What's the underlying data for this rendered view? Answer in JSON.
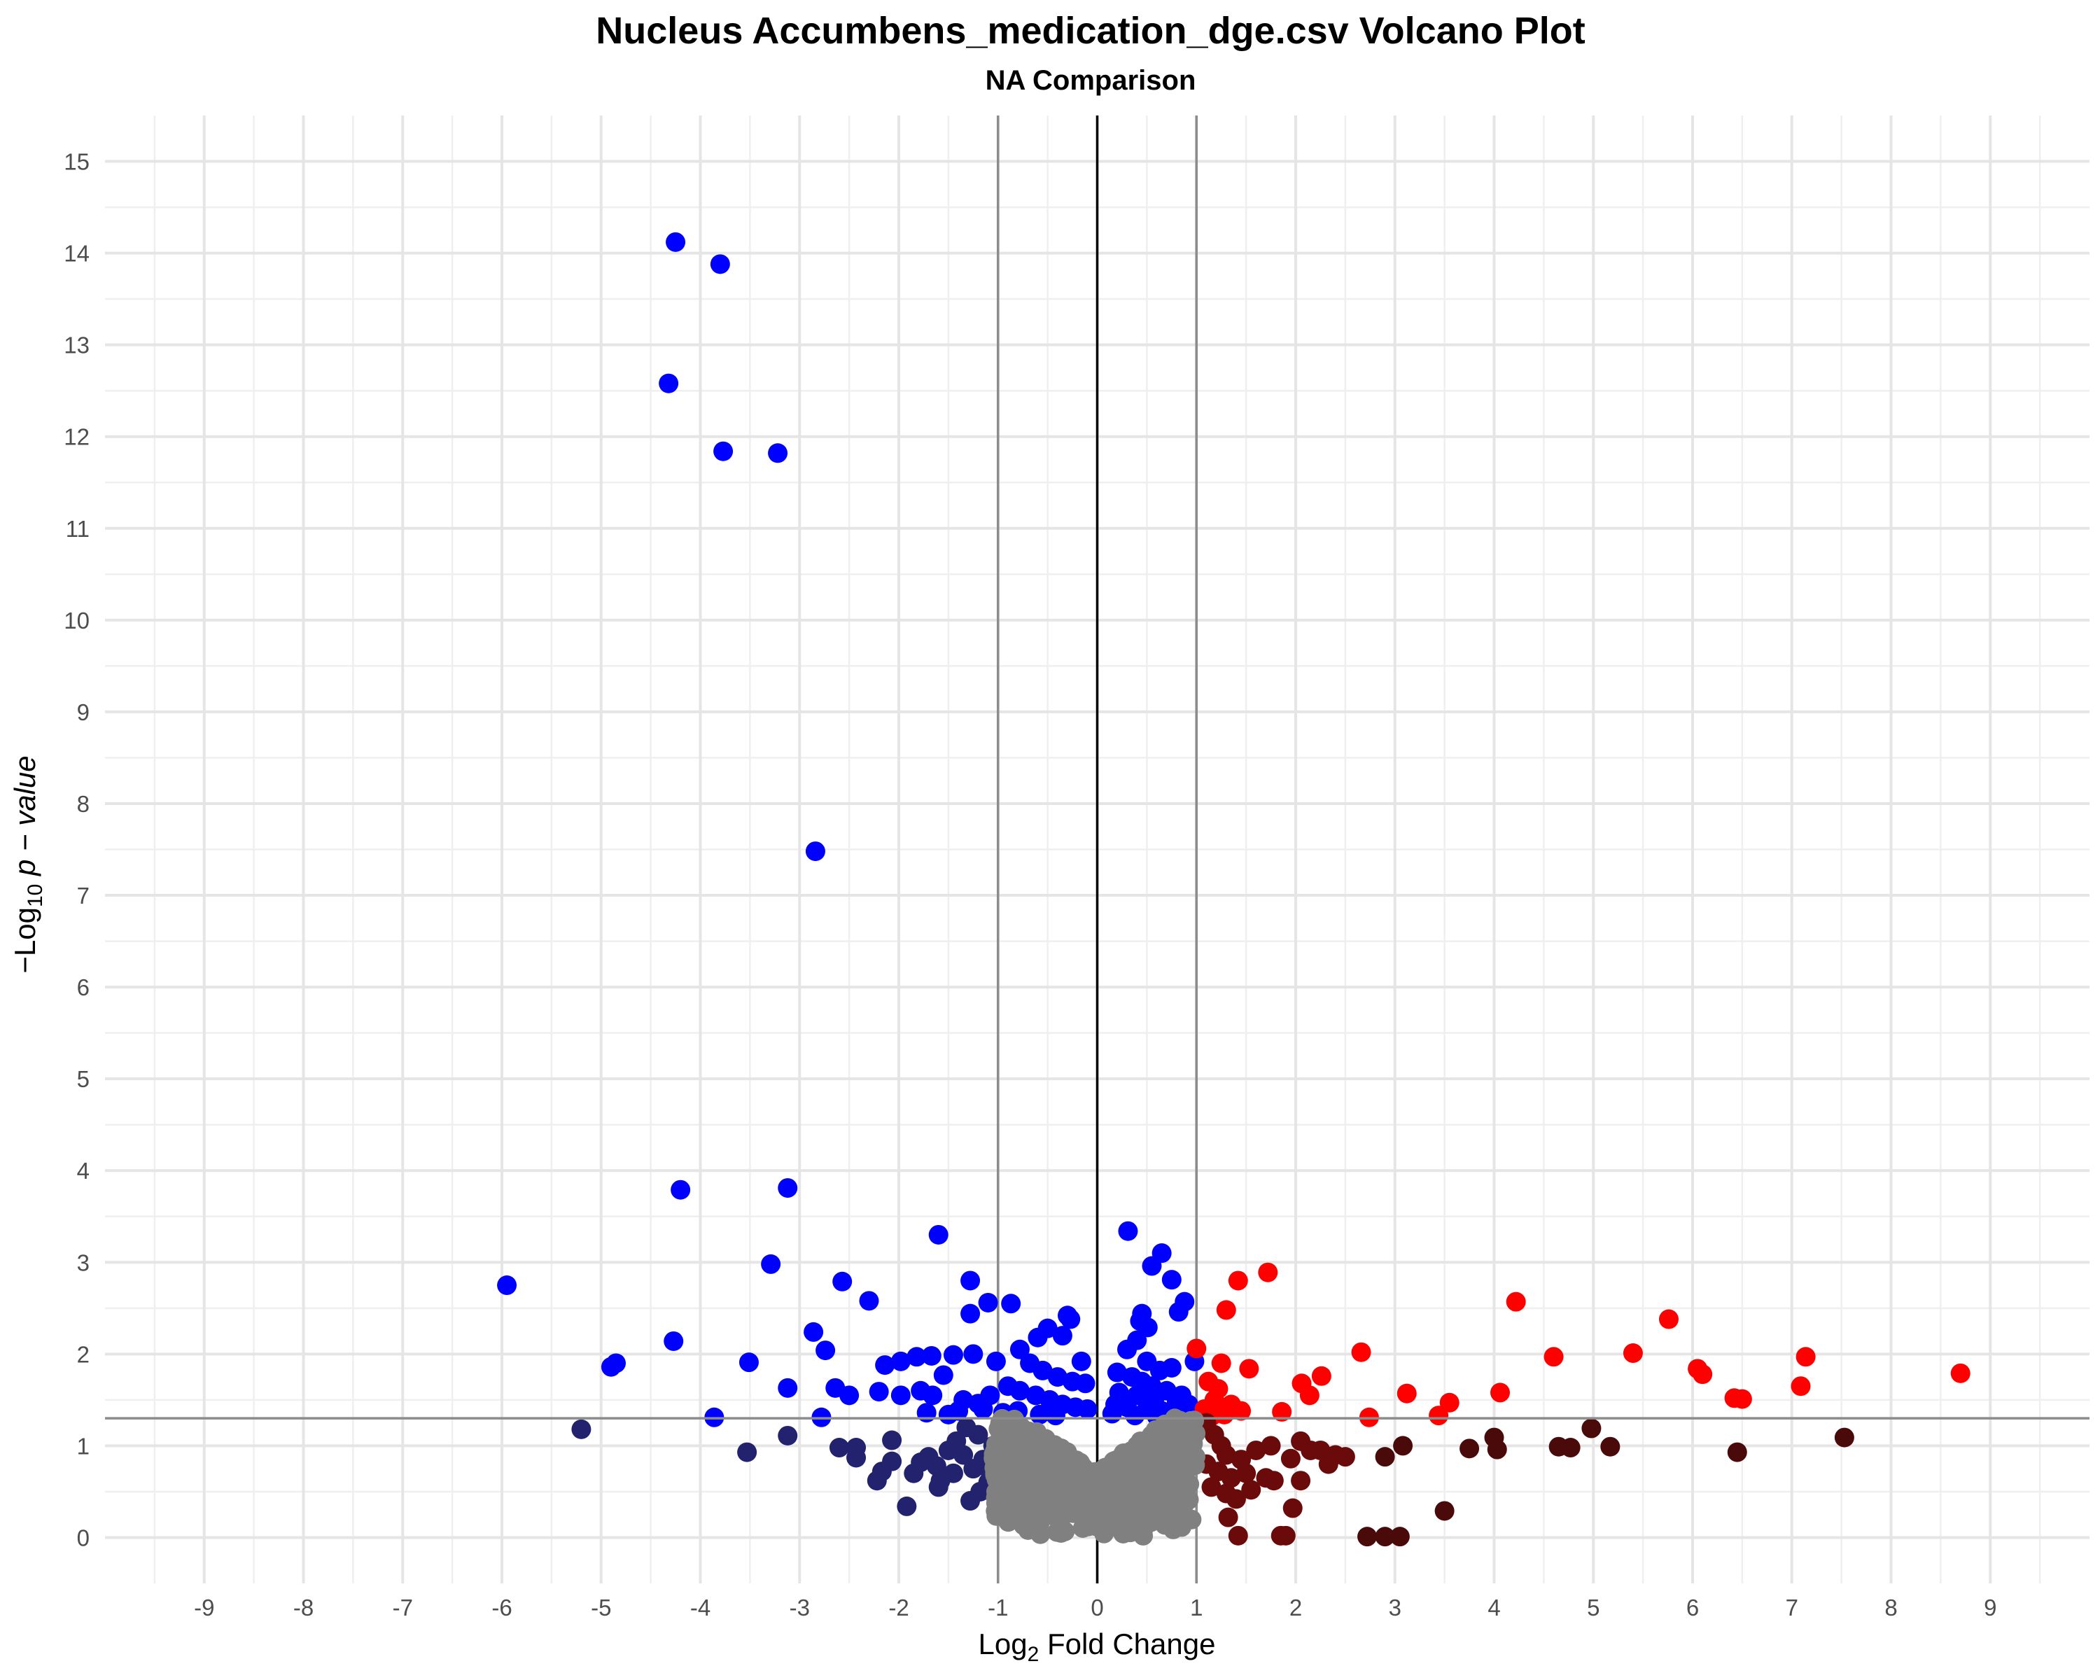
{
  "chart_data": {
    "type": "scatter",
    "title": "Nucleus Accumbens_medication_dge.csv Volcano Plot",
    "subtitle": "NA Comparison",
    "xlabel": {
      "pre": "Log",
      "sub": "2",
      "post": " Fold Change"
    },
    "ylabel": {
      "pre": "−Log",
      "sub": "10",
      "post": " p − value"
    },
    "xlim": [
      -10,
      10
    ],
    "ylim": [
      -0.5,
      15.5
    ],
    "x_ticks": [
      -9,
      -8,
      -7,
      -6,
      -5,
      -4,
      -3,
      -2,
      -1,
      0,
      1,
      2,
      3,
      4,
      5,
      6,
      7,
      8,
      9
    ],
    "x_tick_labels": [
      "-9",
      "-8",
      "-7",
      "-6",
      "-5",
      "-4",
      "-3",
      "-2",
      "-1",
      "0",
      "1",
      "2",
      "3",
      "4",
      "5",
      "6",
      "7",
      "8",
      "9"
    ],
    "y_ticks": [
      0,
      1,
      2,
      3,
      4,
      5,
      6,
      7,
      8,
      9,
      10,
      11,
      12,
      13,
      14,
      15
    ],
    "y_tick_labels": [
      "0",
      "1",
      "2",
      "3",
      "4",
      "5",
      "6",
      "7",
      "8",
      "9",
      "10",
      "11",
      "12",
      "13",
      "14",
      "15"
    ],
    "grid": true,
    "legend": "none",
    "reference_lines": {
      "vertical": [
        {
          "x": -1,
          "color": "#8c8c8c"
        },
        {
          "x": 0,
          "color": "#000000"
        },
        {
          "x": 1,
          "color": "#8c8c8c"
        }
      ],
      "horizontal": [
        {
          "y": 1.3,
          "color": "#8c8c8c"
        }
      ]
    },
    "series": [
      {
        "color": "#0000ff",
        "points": [
          [
            -4.25,
            14.12
          ],
          [
            -3.8,
            13.88
          ],
          [
            -4.32,
            12.58
          ],
          [
            -3.77,
            11.84
          ],
          [
            -3.22,
            11.82
          ],
          [
            -2.84,
            7.48
          ],
          [
            -4.2,
            3.79
          ],
          [
            -3.12,
            3.81
          ],
          [
            -5.95,
            2.75
          ],
          [
            -3.29,
            2.98
          ],
          [
            -2.57,
            2.79
          ],
          [
            -2.3,
            2.58
          ],
          [
            -2.86,
            2.24
          ],
          [
            -2.74,
            2.04
          ],
          [
            -4.27,
            2.14
          ],
          [
            -3.51,
            1.91
          ],
          [
            -4.85,
            1.9
          ],
          [
            -4.9,
            1.86
          ],
          [
            -3.12,
            1.63
          ],
          [
            -2.64,
            1.63
          ],
          [
            -2.5,
            1.55
          ],
          [
            -2.2,
            1.59
          ],
          [
            -3.86,
            1.31
          ],
          [
            -2.78,
            1.31
          ],
          [
            -1.6,
            3.3
          ],
          [
            -1.28,
            2.8
          ],
          [
            -1.28,
            2.44
          ],
          [
            -1.1,
            2.56
          ],
          [
            -0.87,
            2.55
          ],
          [
            -2.14,
            1.88
          ],
          [
            -1.98,
            1.92
          ],
          [
            -1.82,
            1.97
          ],
          [
            -1.67,
            1.98
          ],
          [
            -1.45,
            1.99
          ],
          [
            -1.25,
            2.0
          ],
          [
            -1.02,
            1.92
          ],
          [
            -1.55,
            1.77
          ],
          [
            -1.78,
            1.6
          ],
          [
            -1.66,
            1.55
          ],
          [
            -1.98,
            1.55
          ],
          [
            -1.35,
            1.5
          ],
          [
            -1.2,
            1.46
          ],
          [
            -1.08,
            1.55
          ],
          [
            -0.78,
            2.05
          ],
          [
            -0.6,
            2.18
          ],
          [
            -0.5,
            2.28
          ],
          [
            -0.3,
            2.42
          ],
          [
            -0.27,
            2.38
          ],
          [
            -0.35,
            2.2
          ],
          [
            -0.16,
            1.92
          ],
          [
            -0.68,
            1.9
          ],
          [
            -0.55,
            1.82
          ],
          [
            -0.4,
            1.75
          ],
          [
            -0.25,
            1.7
          ],
          [
            -0.12,
            1.68
          ],
          [
            -0.9,
            1.65
          ],
          [
            -0.78,
            1.6
          ],
          [
            -0.62,
            1.55
          ],
          [
            -0.48,
            1.5
          ],
          [
            -0.35,
            1.45
          ],
          [
            -0.22,
            1.42
          ],
          [
            -0.1,
            1.4
          ],
          [
            -1.4,
            1.38
          ],
          [
            -1.15,
            1.4
          ],
          [
            -0.95,
            1.36
          ],
          [
            -0.8,
            1.38
          ],
          [
            -0.58,
            1.34
          ],
          [
            -0.42,
            1.33
          ],
          [
            -1.72,
            1.36
          ],
          [
            -1.5,
            1.34
          ],
          [
            0.31,
            3.34
          ],
          [
            0.65,
            3.1
          ],
          [
            0.55,
            2.96
          ],
          [
            0.75,
            2.81
          ],
          [
            0.88,
            2.57
          ],
          [
            0.82,
            2.46
          ],
          [
            0.45,
            2.44
          ],
          [
            0.51,
            2.29
          ],
          [
            0.43,
            2.36
          ],
          [
            0.4,
            2.15
          ],
          [
            0.3,
            2.05
          ],
          [
            0.5,
            1.92
          ],
          [
            0.63,
            1.82
          ],
          [
            0.75,
            1.85
          ],
          [
            0.98,
            1.92
          ],
          [
            0.2,
            1.8
          ],
          [
            0.35,
            1.75
          ],
          [
            0.45,
            1.7
          ],
          [
            0.55,
            1.65
          ],
          [
            0.7,
            1.6
          ],
          [
            0.85,
            1.55
          ],
          [
            0.22,
            1.58
          ],
          [
            0.4,
            1.55
          ],
          [
            0.58,
            1.52
          ],
          [
            0.8,
            1.48
          ],
          [
            0.92,
            1.45
          ],
          [
            0.18,
            1.45
          ],
          [
            0.3,
            1.42
          ],
          [
            0.5,
            1.4
          ],
          [
            0.65,
            1.38
          ],
          [
            0.78,
            1.36
          ],
          [
            0.92,
            1.34
          ],
          [
            0.15,
            1.35
          ],
          [
            0.38,
            1.33
          ],
          [
            0.6,
            1.32
          ]
        ]
      },
      {
        "color": "#ff0000",
        "points": [
          [
            1.72,
            2.89
          ],
          [
            1.42,
            2.8
          ],
          [
            1.3,
            2.48
          ],
          [
            4.22,
            2.57
          ],
          [
            5.76,
            2.38
          ],
          [
            2.66,
            2.02
          ],
          [
            4.6,
            1.97
          ],
          [
            5.4,
            2.01
          ],
          [
            7.14,
            1.97
          ],
          [
            8.7,
            1.79
          ],
          [
            6.05,
            1.84
          ],
          [
            6.1,
            1.78
          ],
          [
            1.0,
            2.06
          ],
          [
            1.25,
            1.9
          ],
          [
            1.53,
            1.84
          ],
          [
            2.26,
            1.76
          ],
          [
            2.06,
            1.68
          ],
          [
            2.14,
            1.55
          ],
          [
            3.12,
            1.57
          ],
          [
            4.06,
            1.58
          ],
          [
            7.09,
            1.65
          ],
          [
            6.42,
            1.52
          ],
          [
            6.5,
            1.51
          ],
          [
            3.55,
            1.47
          ],
          [
            3.44,
            1.33
          ],
          [
            2.74,
            1.31
          ],
          [
            1.86,
            1.37
          ],
          [
            1.12,
            1.7
          ],
          [
            1.22,
            1.62
          ],
          [
            1.18,
            1.5
          ],
          [
            1.35,
            1.45
          ],
          [
            1.45,
            1.38
          ],
          [
            1.08,
            1.4
          ],
          [
            1.28,
            1.34
          ],
          [
            1.15,
            1.32
          ]
        ]
      },
      {
        "color": "#22226e",
        "points": [
          [
            -5.2,
            1.18
          ],
          [
            -3.12,
            1.11
          ],
          [
            -3.53,
            0.93
          ],
          [
            -2.6,
            0.98
          ],
          [
            -2.43,
            0.98
          ],
          [
            -2.43,
            0.87
          ],
          [
            -2.07,
            1.06
          ],
          [
            -2.07,
            0.83
          ],
          [
            -2.17,
            0.72
          ],
          [
            -2.22,
            0.62
          ],
          [
            -1.92,
            0.34
          ],
          [
            -1.85,
            0.7
          ],
          [
            -1.78,
            0.82
          ],
          [
            -1.7,
            0.88
          ],
          [
            -1.58,
            0.62
          ],
          [
            -1.62,
            0.78
          ],
          [
            -1.5,
            0.95
          ],
          [
            -1.42,
            1.05
          ],
          [
            -1.35,
            0.9
          ],
          [
            -1.28,
            0.4
          ],
          [
            -1.25,
            0.75
          ],
          [
            -1.2,
            1.12
          ],
          [
            -1.15,
            0.85
          ],
          [
            -1.1,
            0.6
          ],
          [
            -1.05,
            1.0
          ],
          [
            -1.32,
            1.2
          ],
          [
            -1.45,
            0.7
          ],
          [
            -1.6,
            0.55
          ],
          [
            -1.18,
            0.5
          ],
          [
            -1.08,
            0.72
          ]
        ]
      },
      {
        "color": "#6b0a0a",
        "points": [
          [
            1.1,
            1.25
          ],
          [
            1.18,
            1.12
          ],
          [
            1.25,
            1.0
          ],
          [
            1.3,
            0.9
          ],
          [
            1.1,
            0.8
          ],
          [
            1.22,
            0.72
          ],
          [
            1.35,
            0.65
          ],
          [
            1.15,
            0.55
          ],
          [
            1.3,
            0.48
          ],
          [
            1.4,
            0.42
          ],
          [
            1.32,
            0.22
          ],
          [
            1.42,
            0.02
          ],
          [
            1.45,
            0.85
          ],
          [
            1.5,
            0.7
          ],
          [
            1.55,
            0.52
          ],
          [
            1.6,
            0.95
          ],
          [
            1.75,
            1.0
          ],
          [
            1.7,
            0.65
          ],
          [
            1.78,
            0.62
          ],
          [
            1.85,
            0.02
          ],
          [
            1.9,
            0.02
          ],
          [
            1.97,
            0.32
          ],
          [
            1.95,
            0.86
          ],
          [
            2.05,
            1.05
          ],
          [
            2.15,
            0.95
          ],
          [
            2.25,
            0.95
          ],
          [
            2.33,
            0.8
          ],
          [
            2.4,
            0.9
          ],
          [
            2.5,
            0.88
          ],
          [
            2.05,
            0.62
          ]
        ]
      },
      {
        "color": "#4a0a0a",
        "points": [
          [
            2.72,
            0.01
          ],
          [
            2.9,
            0.01
          ],
          [
            3.05,
            0.01
          ],
          [
            2.9,
            0.88
          ],
          [
            3.08,
            1.0
          ],
          [
            3.5,
            0.29
          ],
          [
            3.75,
            0.97
          ],
          [
            4.0,
            1.09
          ],
          [
            4.03,
            0.96
          ],
          [
            4.65,
            0.99
          ],
          [
            4.77,
            0.98
          ],
          [
            4.98,
            1.19
          ],
          [
            5.17,
            0.99
          ],
          [
            6.45,
            0.93
          ],
          [
            7.53,
            1.09
          ]
        ]
      },
      {
        "color": "#808080",
        "cloud": {
          "x": [
            -1.05,
            1.0
          ],
          "y": [
            0.0,
            1.3
          ],
          "count": 650
        }
      }
    ]
  }
}
